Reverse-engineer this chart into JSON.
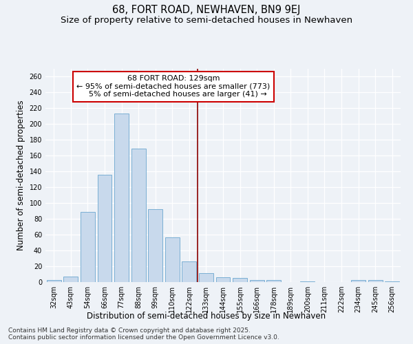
{
  "title": "68, FORT ROAD, NEWHAVEN, BN9 9EJ",
  "subtitle": "Size of property relative to semi-detached houses in Newhaven",
  "xlabel": "Distribution of semi-detached houses by size in Newhaven",
  "ylabel": "Number of semi-detached properties",
  "categories": [
    "32sqm",
    "43sqm",
    "54sqm",
    "66sqm",
    "77sqm",
    "88sqm",
    "99sqm",
    "110sqm",
    "122sqm",
    "133sqm",
    "144sqm",
    "155sqm",
    "166sqm",
    "178sqm",
    "189sqm",
    "200sqm",
    "211sqm",
    "222sqm",
    "234sqm",
    "245sqm",
    "256sqm"
  ],
  "values": [
    3,
    7,
    89,
    136,
    213,
    169,
    92,
    57,
    26,
    11,
    6,
    5,
    3,
    3,
    0,
    1,
    0,
    0,
    3,
    3,
    1
  ],
  "bar_color": "#c8d9ec",
  "bar_edge_color": "#7aafd4",
  "vline_x": 8.5,
  "vline_color": "#8b0000",
  "annotation_line1": "68 FORT ROAD: 129sqm",
  "annotation_line2": "← 95% of semi-detached houses are smaller (773)",
  "annotation_line3": "    5% of semi-detached houses are larger (41) →",
  "annotation_box_facecolor": "#ffffff",
  "annotation_box_edgecolor": "#cc0000",
  "background_color": "#eef2f7",
  "grid_color": "#ffffff",
  "title_fontsize": 10.5,
  "subtitle_fontsize": 9.5,
  "axis_label_fontsize": 8.5,
  "tick_fontsize": 7,
  "annotation_fontsize": 8,
  "footer_text": "Contains HM Land Registry data © Crown copyright and database right 2025.\nContains public sector information licensed under the Open Government Licence v3.0.",
  "footer_fontsize": 6.5,
  "ylim": [
    0,
    270
  ],
  "yticks": [
    0,
    20,
    40,
    60,
    80,
    100,
    120,
    140,
    160,
    180,
    200,
    220,
    240,
    260
  ]
}
